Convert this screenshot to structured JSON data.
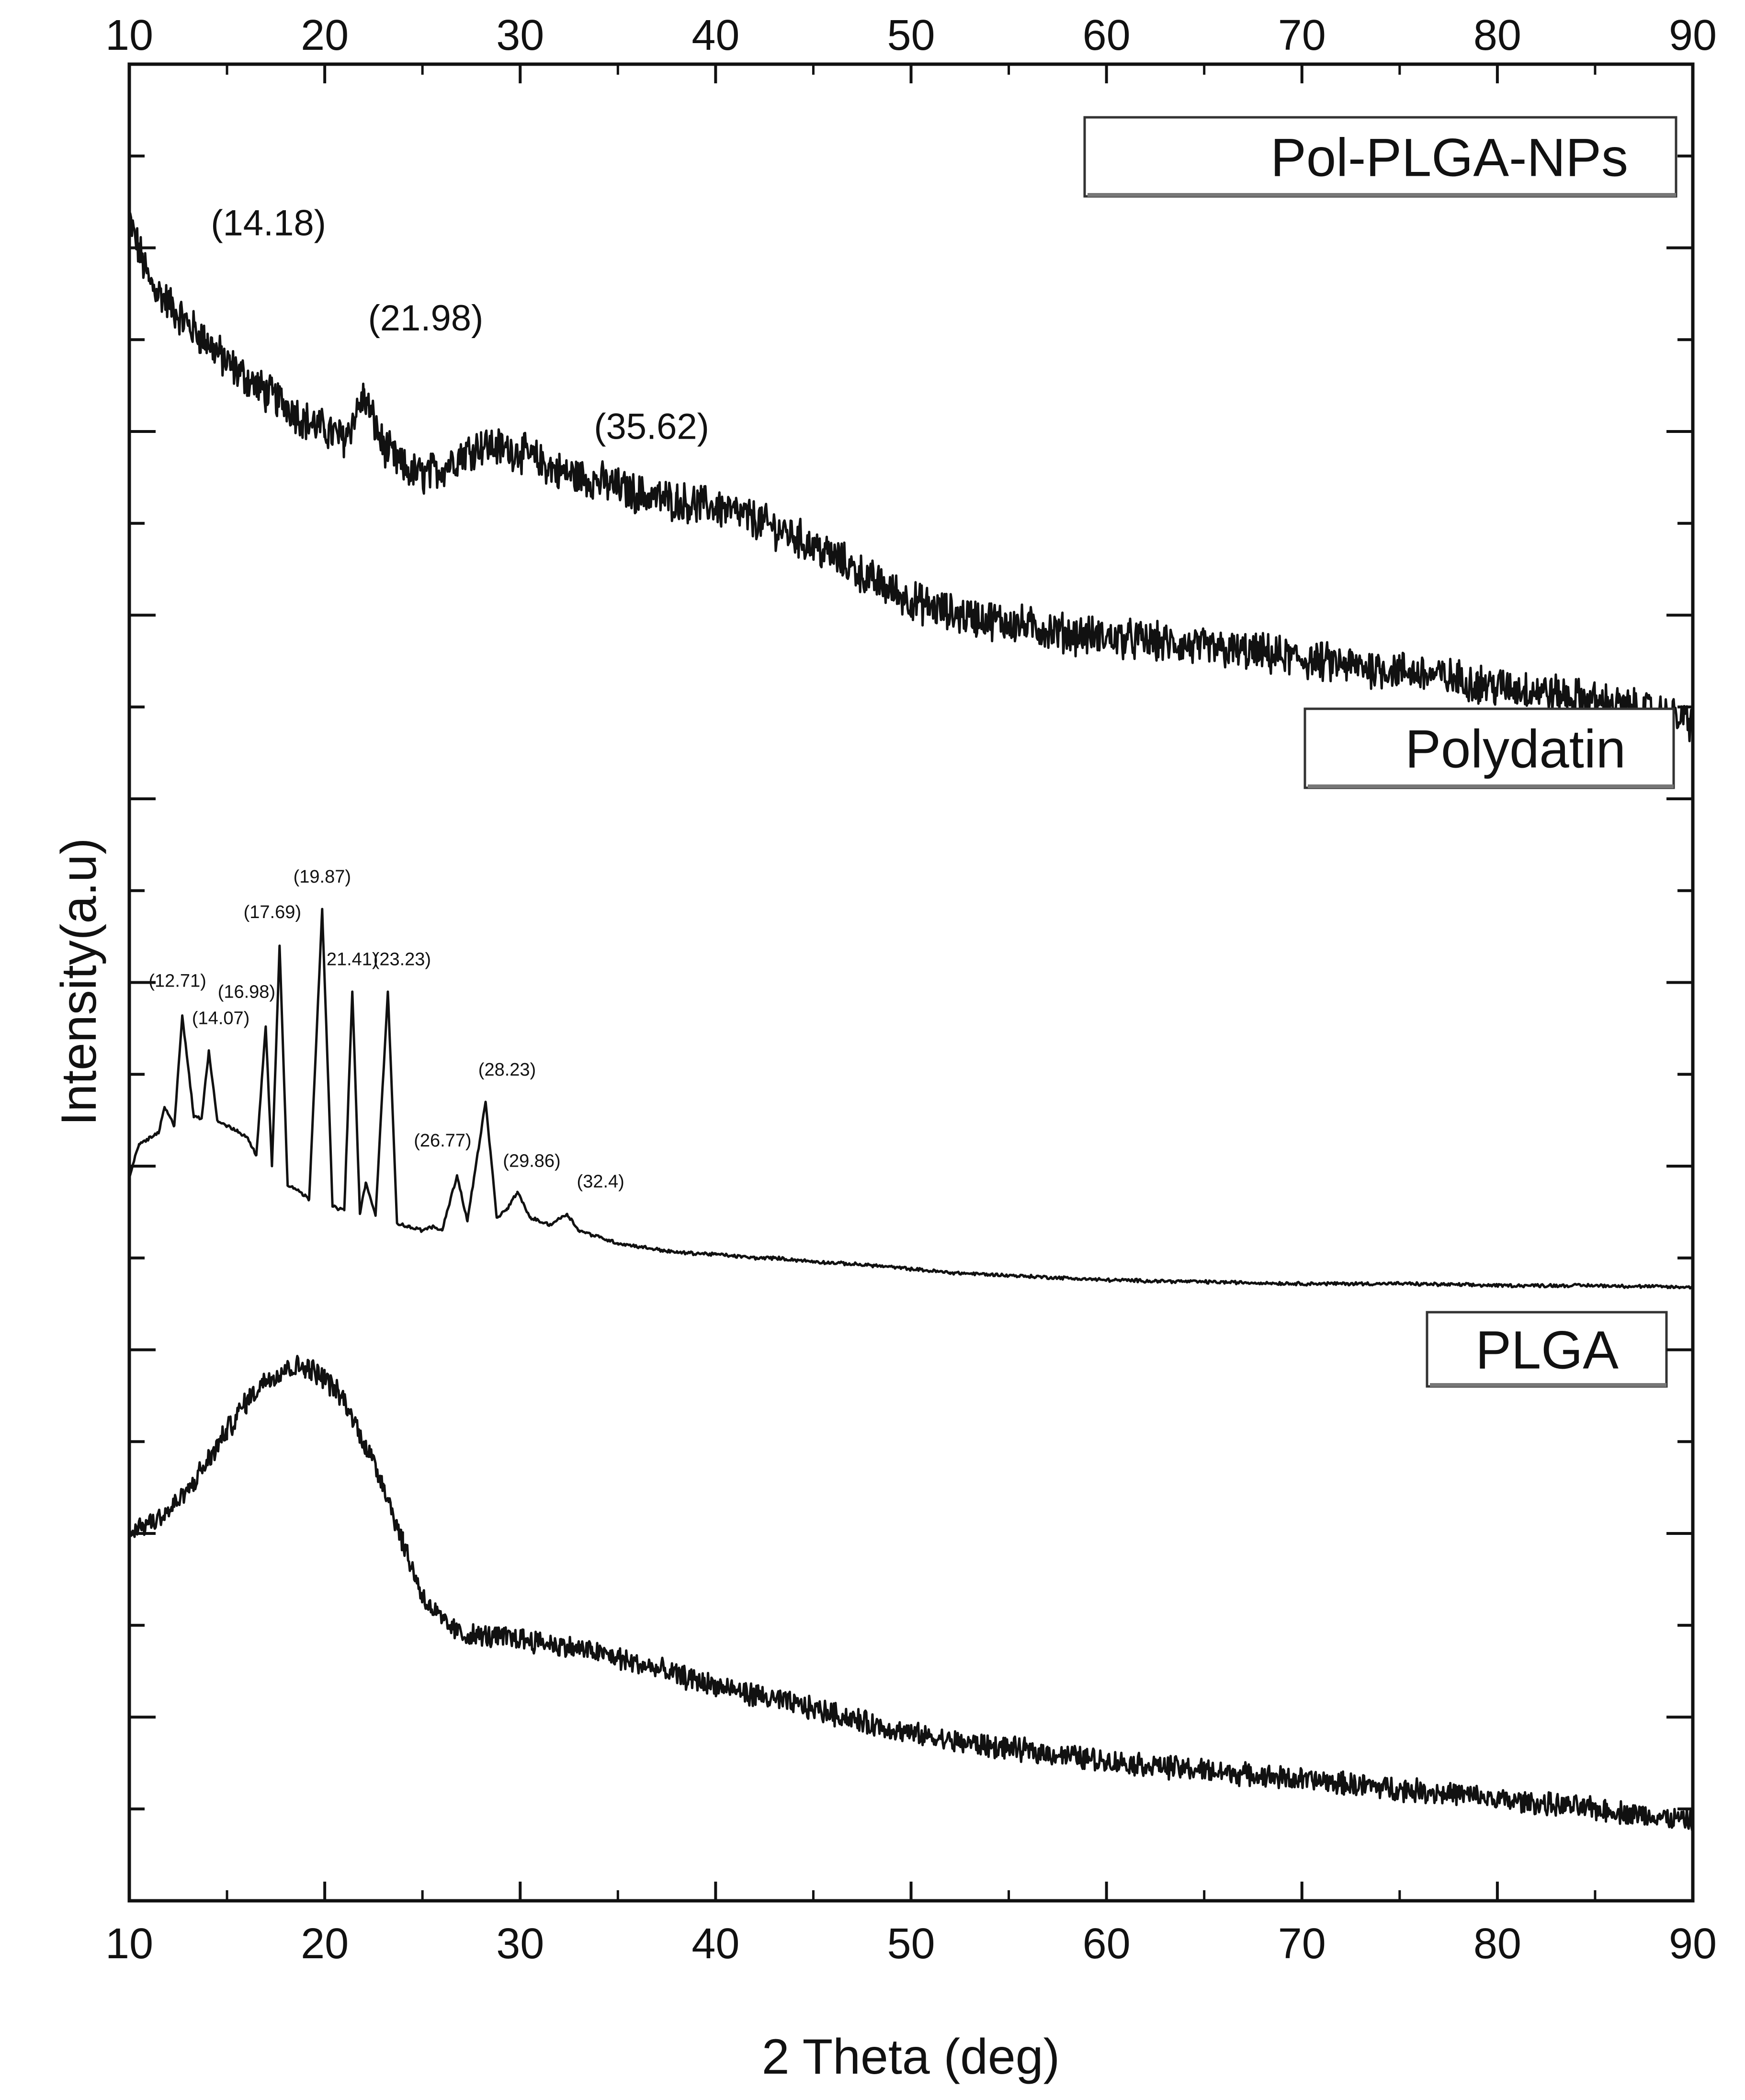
{
  "chart_data": {
    "type": "line",
    "xlabel": "2 Theta (deg)",
    "ylabel": "Intensity(a.u)",
    "xlim": [
      10,
      90
    ],
    "ylim": [
      0,
      100
    ],
    "x_ticks": [
      10,
      20,
      30,
      40,
      50,
      60,
      70,
      80,
      90
    ],
    "x_tick_labels": [
      "10",
      "20",
      "30",
      "40",
      "50",
      "60",
      "70",
      "80",
      "90"
    ],
    "y_tick_labels_shown": false,
    "grid": false,
    "colors": {
      "line": "#111111",
      "axis": "#111111",
      "background": "#ffffff"
    },
    "series": [
      {
        "name": "Pol-PLGA-NPs",
        "x": [
          10,
          11,
          12,
          13,
          14,
          15,
          16,
          17,
          18,
          19,
          20,
          21,
          22,
          23,
          24,
          25,
          26,
          27,
          28,
          29,
          30,
          32,
          34,
          36,
          38,
          40,
          42,
          44,
          46,
          48,
          50,
          52,
          55,
          58,
          60,
          62,
          65,
          68,
          70,
          72,
          75,
          78,
          80,
          82,
          85,
          88,
          90
        ],
        "y": [
          91.5,
          88.2,
          87.0,
          85.8,
          84.9,
          83.7,
          82.9,
          82.1,
          81.5,
          80.6,
          80.1,
          79.6,
          81.9,
          79.2,
          78.0,
          77.6,
          78.0,
          78.8,
          79.3,
          79.1,
          78.9,
          77.8,
          77.3,
          76.6,
          76.2,
          75.9,
          75.2,
          74.3,
          73.2,
          71.9,
          70.8,
          70.1,
          69.6,
          69.0,
          68.8,
          68.6,
          68.2,
          67.9,
          67.6,
          67.3,
          67.0,
          66.5,
          66.1,
          65.9,
          65.3,
          64.7,
          64.2
        ],
        "peak_labels": [
          {
            "x": 14.18,
            "text": "(14.18)"
          },
          {
            "x": 21.98,
            "text": "(21.98)"
          },
          {
            "x": 35.62,
            "text": "(35.62)"
          }
        ]
      },
      {
        "name": "Polydatin",
        "x": [
          10,
          10.5,
          11,
          11.5,
          11.8,
          12.3,
          12.71,
          13.3,
          13.7,
          14.07,
          14.5,
          15,
          15.5,
          16,
          16.5,
          16.98,
          17.3,
          17.69,
          18.1,
          18.6,
          19.2,
          19.87,
          20.4,
          21,
          21.41,
          21.8,
          22.1,
          22.6,
          23.23,
          23.7,
          24.3,
          25,
          25.5,
          26,
          26.77,
          27.3,
          28.23,
          28.8,
          29.3,
          29.86,
          30.5,
          31.5,
          32.4,
          33,
          35,
          38,
          40,
          42,
          43,
          45,
          48,
          52,
          56,
          60,
          65,
          70,
          75,
          80,
          85,
          90
        ],
        "y": [
          39.4,
          41.2,
          41.5,
          41.8,
          43.2,
          42.2,
          48.2,
          42.7,
          42.6,
          46.3,
          42.5,
          42.2,
          41.9,
          41.6,
          40.6,
          47.6,
          40.0,
          52.0,
          39.0,
          38.7,
          38.2,
          54.0,
          37.8,
          37.6,
          49.5,
          37.4,
          39.1,
          37.3,
          49.5,
          36.9,
          36.7,
          36.5,
          36.7,
          36.5,
          39.5,
          37.0,
          43.5,
          37.2,
          37.6,
          38.6,
          37.2,
          36.8,
          37.4,
          36.5,
          35.8,
          35.3,
          35.2,
          35.0,
          35.0,
          34.8,
          34.6,
          34.2,
          34.0,
          33.8,
          33.7,
          33.6,
          33.6,
          33.5,
          33.5,
          33.4
        ],
        "peak_labels": [
          {
            "x": 12.71,
            "text": "(12.71)"
          },
          {
            "x": 14.07,
            "text": "(14.07)"
          },
          {
            "x": 16.98,
            "text": "(16.98)"
          },
          {
            "x": 17.69,
            "text": "(17.69)"
          },
          {
            "x": 19.87,
            "text": "(19.87)"
          },
          {
            "x": 21.41,
            "text": "21.41)"
          },
          {
            "x": 23.23,
            "text": "(23.23)"
          },
          {
            "x": 26.77,
            "text": "(26.77)"
          },
          {
            "x": 28.23,
            "text": "(28.23)"
          },
          {
            "x": 29.86,
            "text": "(29.86)"
          },
          {
            "x": 32.4,
            "text": "(32.4)"
          }
        ]
      },
      {
        "name": "PLGA",
        "x": [
          10,
          11,
          12,
          13,
          14,
          15,
          16,
          17,
          18,
          19,
          20,
          21,
          22,
          23,
          24,
          25,
          26,
          27,
          28,
          30,
          32,
          34,
          36,
          38,
          40,
          42,
          44,
          46,
          48,
          50,
          52,
          55,
          58,
          60,
          62,
          65,
          68,
          70,
          72,
          75,
          78,
          80,
          82,
          85,
          88,
          90
        ],
        "y": [
          20.1,
          20.6,
          21.2,
          22.3,
          23.9,
          25.6,
          27.2,
          28.4,
          29.0,
          29.1,
          28.5,
          27.2,
          25.0,
          22.7,
          19.5,
          16.6,
          15.2,
          14.5,
          14.4,
          14.3,
          13.9,
          13.5,
          12.9,
          12.3,
          11.7,
          11.2,
          10.7,
          10.2,
          9.6,
          9.1,
          8.7,
          8.3,
          7.9,
          7.6,
          7.4,
          7.1,
          6.8,
          6.6,
          6.4,
          6.1,
          5.8,
          5.5,
          5.3,
          5.0,
          4.6,
          4.3
        ]
      }
    ],
    "legend_boxes": [
      {
        "series": "Pol-PLGA-NPs",
        "placement": "top-right"
      },
      {
        "series": "Polydatin",
        "placement": "center-right"
      },
      {
        "series": "PLGA",
        "placement": "lower-right"
      }
    ]
  }
}
